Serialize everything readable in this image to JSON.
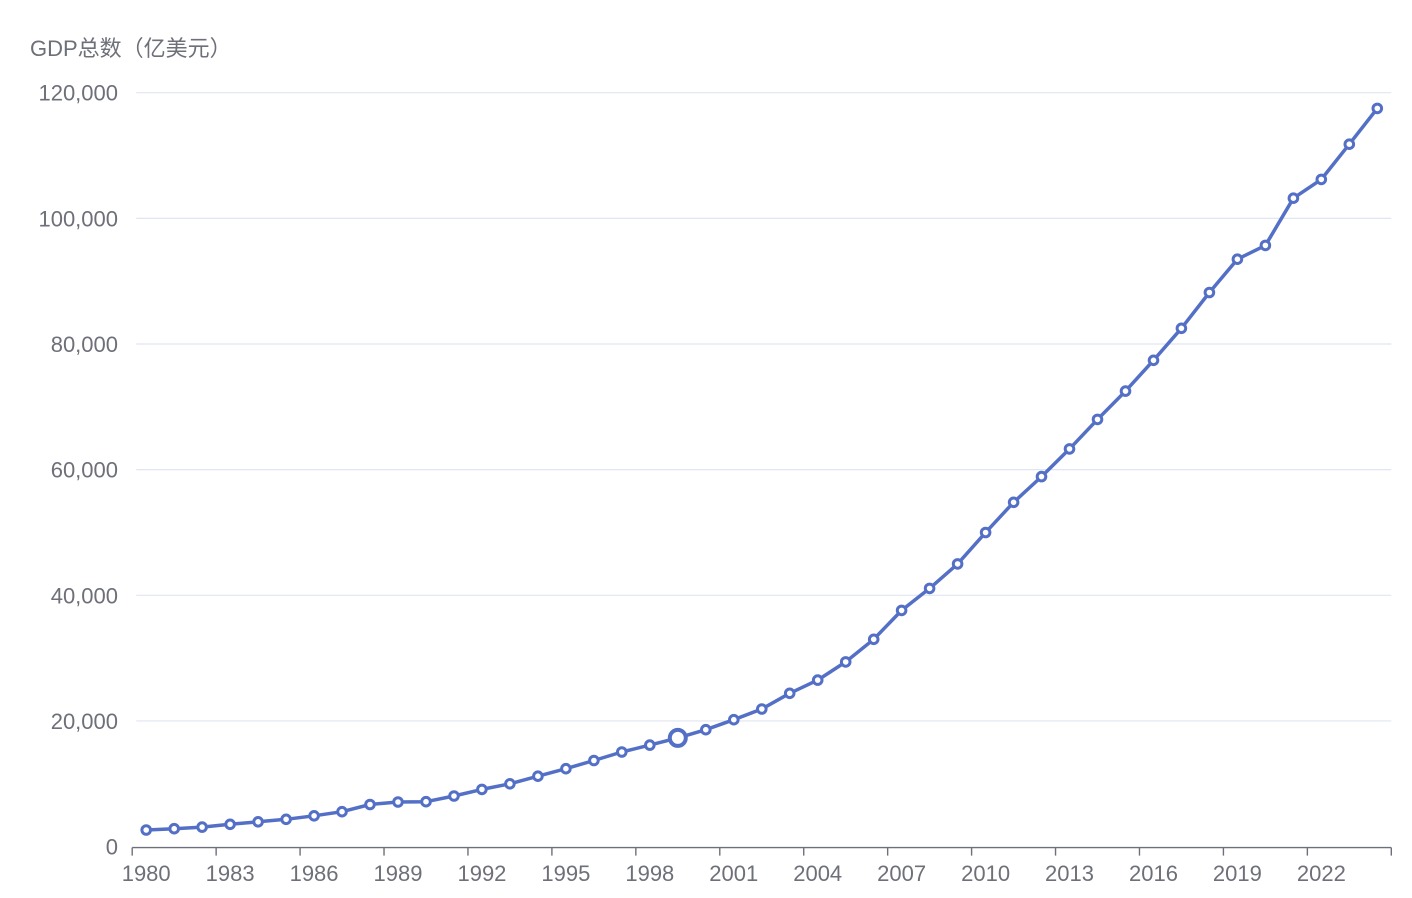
{
  "chart": {
    "title": "GDP总数（亿美元）"
  },
  "chart_data": {
    "type": "line",
    "title": "GDP总数（亿美元）",
    "x": [
      1980,
      1981,
      1982,
      1983,
      1984,
      1985,
      1986,
      1987,
      1988,
      1989,
      1990,
      1991,
      1992,
      1993,
      1994,
      1995,
      1996,
      1997,
      1998,
      1999,
      2000,
      2001,
      2002,
      2003,
      2004,
      2005,
      2006,
      2007,
      2008,
      2009,
      2010,
      2011,
      2012,
      2013,
      2014,
      2015,
      2016,
      2017,
      2018,
      2019,
      2020,
      2021,
      2022,
      2023,
      2024
    ],
    "series": [
      {
        "name": "GDP总数（亿美元）",
        "values": [
          2650,
          2850,
          3100,
          3550,
          3950,
          4350,
          4900,
          5550,
          6700,
          7100,
          7150,
          8050,
          9100,
          10000,
          11200,
          12400,
          13700,
          15050,
          16150,
          17300,
          18600,
          20200,
          21900,
          24400,
          26500,
          29400,
          33000,
          37600,
          41100,
          45000,
          50000,
          54800,
          58900,
          63300,
          68000,
          72500,
          77400,
          82500,
          88200,
          93500,
          95700,
          103200,
          106200,
          111800,
          117500
        ]
      }
    ],
    "ylim": [
      0,
      120000
    ],
    "y_ticks": [
      0,
      20000,
      40000,
      60000,
      80000,
      100000,
      120000
    ],
    "y_tick_labels": [
      "0",
      "20,000",
      "40,000",
      "60,000",
      "80,000",
      "100,000",
      "120,000"
    ],
    "x_tick_label_years": [
      1980,
      1983,
      1986,
      1989,
      1992,
      1995,
      1998,
      2001,
      2004,
      2007,
      2010,
      2013,
      2016,
      2019,
      2022
    ],
    "x_tick_interval_years": 3,
    "grid": true,
    "legend_position": "none",
    "emphasized_x": 1999,
    "colors": {
      "line": "#5470c6",
      "marker_fill": "#ffffff",
      "grid_line": "#e0e6f1",
      "axis_line": "#6e7079",
      "axis_label": "#6e7079",
      "title_text": "#6e7079",
      "background": "#ffffff"
    }
  }
}
